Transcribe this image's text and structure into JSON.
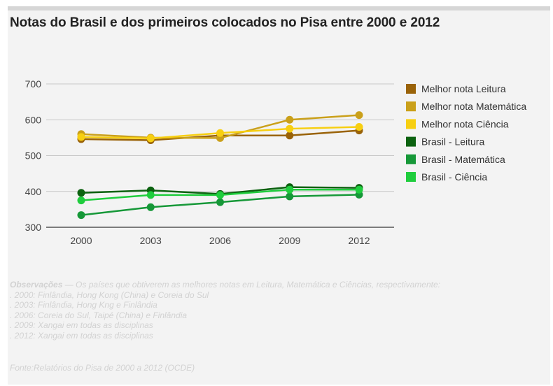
{
  "title": "Notas do Brasil e dos primeiros colocados no Pisa entre 2000 e 2012",
  "chart_data": {
    "type": "line",
    "categories": [
      "2000",
      "2003",
      "2006",
      "2009",
      "2012"
    ],
    "ylim": [
      300,
      700
    ],
    "yticks": [
      300,
      400,
      500,
      600,
      700
    ],
    "grid": true,
    "legend_position": "right",
    "series": [
      {
        "name": "Melhor nota Leitura",
        "color": "#9a6309",
        "values": [
          546,
          543,
          556,
          556,
          570
        ]
      },
      {
        "name": "Melhor nota Matemática",
        "color": "#caa01a",
        "values": [
          560,
          550,
          549,
          600,
          613
        ]
      },
      {
        "name": "Melhor nota Ciência",
        "color": "#f7cf11",
        "values": [
          552,
          548,
          563,
          575,
          580
        ]
      },
      {
        "name": "Brasil - Leitura",
        "color": "#0c6210",
        "values": [
          396,
          403,
          393,
          412,
          410
        ]
      },
      {
        "name": "Brasil - Matemática",
        "color": "#169838",
        "values": [
          334,
          356,
          370,
          386,
          391
        ]
      },
      {
        "name": "Brasil - Ciência",
        "color": "#1fcd3d",
        "values": [
          375,
          390,
          390,
          405,
          405
        ]
      }
    ]
  },
  "notes": {
    "header_bold": "Observações",
    "header_rest": " — Os países que obtiverem as melhores notas em Leitura, Matemática e Ciências, respectivamente:",
    "lines": [
      ". 2000: Finlândia, Hong Kong (China) e Coreia do Sul",
      ". 2003: Finlândia, Hong Kng e Finlândia",
      ". 2006: Coreia do Sul, Taipé (China) e Finlândia",
      ". 2009: Xangai em todas as disciplinas",
      ". 2012: Xangai em todas as disciplinas"
    ]
  },
  "source": "Fonte:Relatórios do Pisa de 2000 a 2012 (OCDE)"
}
